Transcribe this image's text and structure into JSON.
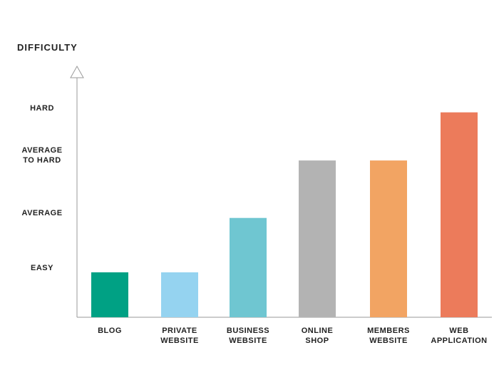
{
  "chart_data": {
    "type": "bar",
    "title": "DIFFICULTY",
    "xlabel": "",
    "ylabel": "DIFFICULTY",
    "y_levels": [
      {
        "value": 1,
        "lines": [
          "EASY"
        ]
      },
      {
        "value": 2,
        "lines": [
          "AVERAGE"
        ]
      },
      {
        "value": 3,
        "lines": [
          "AVERAGE",
          "TO HARD"
        ]
      },
      {
        "value": 4,
        "lines": [
          "HARD"
        ]
      }
    ],
    "ylim": [
      0,
      4
    ],
    "categories": [
      {
        "lines": [
          "BLOG"
        ]
      },
      {
        "lines": [
          "PRIVATE",
          "WEBSITE"
        ]
      },
      {
        "lines": [
          "BUSINESS",
          "WEBSITE"
        ]
      },
      {
        "lines": [
          "ONLINE",
          "SHOP"
        ]
      },
      {
        "lines": [
          "MEMBERS",
          "WEBSITE"
        ]
      },
      {
        "lines": [
          "WEB",
          "APPLICATION"
        ]
      }
    ],
    "values": [
      0.9,
      0.9,
      1.9,
      2.9,
      2.9,
      3.9
    ],
    "colors": [
      "#00a184",
      "#95d3f0",
      "#6fc6d1",
      "#b3b3b3",
      "#f2a463",
      "#ec7b5b"
    ],
    "grid": false,
    "legend": "none"
  }
}
